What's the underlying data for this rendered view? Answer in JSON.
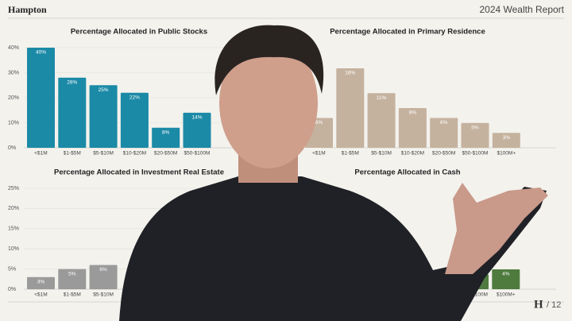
{
  "header": {
    "brand": "Hampton",
    "report": "2024 Wealth Report"
  },
  "footer": {
    "logo": "H",
    "page": "/ 12"
  },
  "chart_data": [
    {
      "type": "bar",
      "title": "Percentage Allocated in Public Stocks",
      "color": "#1b8aa6",
      "categories": [
        "<$1M",
        "$1-$5M",
        "$5-$10M",
        "$10-$20M",
        "$20-$50M",
        "$50-$100M"
      ],
      "values": [
        40,
        28,
        25,
        22,
        8,
        14
      ],
      "value_labels": [
        "40%",
        "28%",
        "25%",
        "22%",
        "8%",
        "14%"
      ],
      "ylim": [
        0,
        40
      ],
      "yticks": [
        {
          "value": 0,
          "label": "0%"
        },
        {
          "value": 10,
          "label": "10%"
        },
        {
          "value": 20,
          "label": "20%"
        },
        {
          "value": 30,
          "label": "30%"
        },
        {
          "value": 40,
          "label": "40%"
        }
      ]
    },
    {
      "type": "bar",
      "title": "Percentage Allocated in Primary Residence",
      "color": "#c5b29e",
      "categories": [
        "<$1M",
        "$1-$5M",
        "$5-$10M",
        "$10-$20M",
        "$20-$50M",
        "$50-$100M",
        "$100M+"
      ],
      "values": [
        6,
        16,
        11,
        8,
        6,
        5,
        3
      ],
      "value_labels": [
        "6%",
        "16%",
        "11%",
        "8%",
        "6%",
        "5%",
        "3%"
      ],
      "ylim": [
        0,
        20
      ]
    },
    {
      "type": "bar",
      "title": "Percentage Allocated in Investment Real Estate",
      "color": "#9a9a9a",
      "categories": [
        "<$1M",
        "$1-$5M",
        "$5-$10M"
      ],
      "values": [
        3,
        5,
        6
      ],
      "value_labels": [
        "3%",
        "5%",
        "6%"
      ],
      "ylim": [
        0,
        25
      ],
      "yticks": [
        {
          "value": 0,
          "label": "0%"
        },
        {
          "value": 5,
          "label": "5%"
        },
        {
          "value": 10,
          "label": "10%"
        },
        {
          "value": 15,
          "label": "15%"
        },
        {
          "value": 20,
          "label": "20%"
        },
        {
          "value": 25,
          "label": "25%"
        }
      ]
    },
    {
      "type": "bar",
      "title": "Percentage Allocated in Cash",
      "color": "#4f7b3f",
      "categories": [
        "$50-$100M",
        "$100M+"
      ],
      "values": [
        3,
        4
      ],
      "value_labels": [
        "3%",
        "4%"
      ],
      "ylim": [
        0,
        20
      ]
    }
  ]
}
